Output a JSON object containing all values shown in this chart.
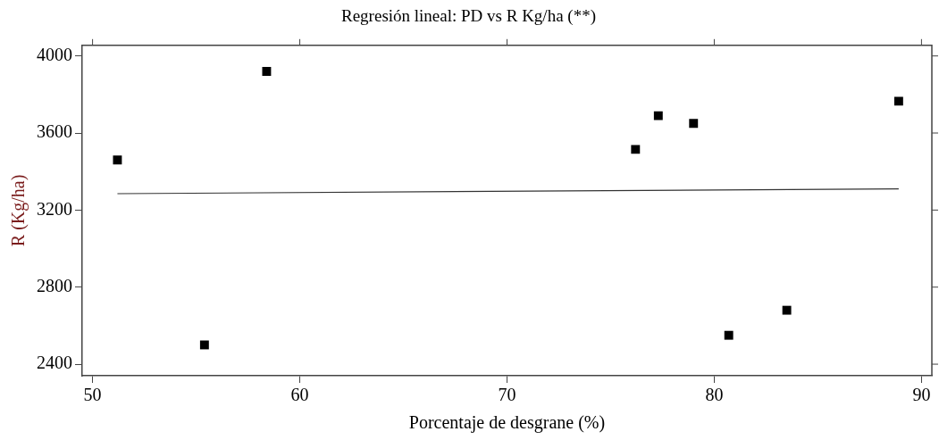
{
  "chart_data": {
    "type": "scatter",
    "title": "Regresión lineal: PD vs R Kg/ha (**)",
    "xlabel": "Porcentaje de desgrane (%)",
    "ylabel": "R (Kg/ha)",
    "xlim": [
      49.5,
      90.5
    ],
    "xticks": [
      50,
      60,
      70,
      80,
      90
    ],
    "ylim": [
      2340,
      4055
    ],
    "yticks": [
      2400,
      2800,
      3200,
      3600,
      4000
    ],
    "grid": false,
    "legend": false,
    "marker": "square",
    "series": [
      {
        "color": "#000000",
        "x": [
          51.2,
          55.4,
          58.4,
          76.2,
          77.3,
          79.0,
          80.7,
          83.5,
          88.9
        ],
        "values": [
          3460,
          2500,
          3920,
          3515,
          3690,
          3650,
          2550,
          2680,
          3765
        ]
      },
      {
        "type": "line",
        "color": "#333333",
        "marker": "none",
        "line_style": "solid",
        "x": [
          51.2,
          88.9
        ],
        "values": [
          3285,
          3310
        ]
      }
    ]
  }
}
